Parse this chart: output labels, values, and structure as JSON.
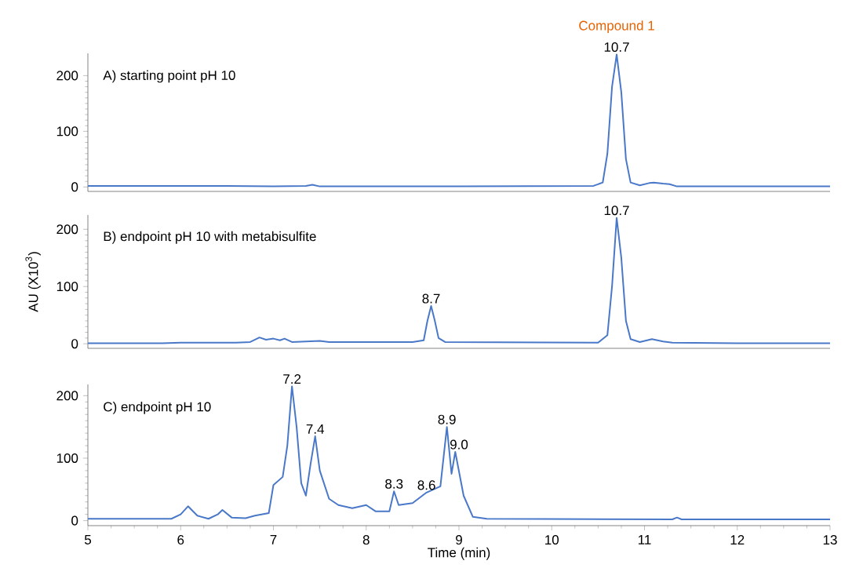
{
  "chart_data": [
    {
      "type": "line",
      "title": "A) starting point pH 10",
      "color": "#4a78c8",
      "xlim": [
        5,
        13
      ],
      "xticks": [
        5,
        6,
        7,
        8,
        9,
        10,
        11,
        12,
        13
      ],
      "ylim": [
        -8,
        240
      ],
      "yticks": [
        0,
        100,
        200
      ],
      "tick_labels": "y",
      "x": [
        5,
        6.5,
        7.0,
        7.35,
        7.42,
        7.5,
        9,
        10.45,
        10.55,
        10.6,
        10.65,
        10.7,
        10.75,
        10.8,
        10.85,
        10.95,
        11.05,
        11.1,
        11.2,
        11.27,
        11.35,
        12,
        13
      ],
      "values": [
        2,
        2,
        1,
        2,
        4,
        1,
        1,
        2,
        8,
        60,
        180,
        238,
        170,
        50,
        8,
        3,
        7,
        8,
        6,
        5,
        1,
        1,
        1
      ],
      "annotations": [
        {
          "text": "10.7",
          "x": 10.7,
          "y": 238
        },
        {
          "text": "Compound 1",
          "x": 10.7,
          "y": 238
        }
      ]
    },
    {
      "type": "line",
      "title": "B) endpoint pH 10 with metabisulfite",
      "ylabel": "AU (X10$^{3}$)",
      "color": "#4a78c8",
      "xlim": [
        5,
        13
      ],
      "xticks": [
        5,
        6,
        7,
        8,
        9,
        10,
        11,
        12,
        13
      ],
      "ylim": [
        -8,
        225
      ],
      "yticks": [
        0,
        100,
        200
      ],
      "tick_labels": "y",
      "x": [
        5,
        5.8,
        6.0,
        6.6,
        6.75,
        6.85,
        6.92,
        7.0,
        7.07,
        7.12,
        7.2,
        7.5,
        7.6,
        8.0,
        8.5,
        8.62,
        8.66,
        8.7,
        8.74,
        8.78,
        8.85,
        10.5,
        10.6,
        10.65,
        10.7,
        10.75,
        10.8,
        10.85,
        10.95,
        11.08,
        11.2,
        11.3,
        12,
        13
      ],
      "values": [
        1,
        1,
        2,
        2,
        3,
        11,
        7,
        9,
        6,
        9,
        3,
        5,
        3,
        3,
        3,
        6,
        40,
        66,
        40,
        10,
        3,
        2,
        15,
        100,
        220,
        150,
        40,
        8,
        3,
        8,
        4,
        2,
        1,
        1
      ],
      "annotations": [
        {
          "text": "8.7",
          "x": 8.7,
          "y": 66
        },
        {
          "text": "10.7",
          "x": 10.7,
          "y": 220
        }
      ]
    },
    {
      "type": "line",
      "title": "C) endpoint pH 10",
      "xlabel": "Time (min)",
      "color": "#4a78c8",
      "xlim": [
        5,
        13
      ],
      "xticks": [
        5,
        6,
        7,
        8,
        9,
        10,
        11,
        12,
        13
      ],
      "ylim": [
        -8,
        218
      ],
      "yticks": [
        0,
        100,
        200
      ],
      "x": [
        5,
        5.9,
        6.0,
        6.08,
        6.18,
        6.3,
        6.4,
        6.45,
        6.55,
        6.7,
        6.8,
        6.95,
        7.0,
        7.1,
        7.15,
        7.2,
        7.25,
        7.3,
        7.35,
        7.4,
        7.45,
        7.5,
        7.6,
        7.7,
        7.85,
        8.0,
        8.1,
        8.25,
        8.3,
        8.35,
        8.5,
        8.65,
        8.8,
        8.87,
        8.92,
        8.96,
        9.05,
        9.15,
        9.3,
        11.3,
        11.35,
        11.4,
        13
      ],
      "values": [
        3,
        3,
        10,
        23,
        8,
        3,
        10,
        17,
        5,
        4,
        8,
        12,
        57,
        70,
        120,
        215,
        150,
        60,
        40,
        90,
        135,
        80,
        35,
        25,
        20,
        25,
        15,
        15,
        47,
        25,
        28,
        45,
        55,
        150,
        75,
        110,
        40,
        6,
        3,
        2,
        5,
        2,
        2
      ],
      "annotations": [
        {
          "text": "7.2",
          "x": 7.2,
          "y": 215
        },
        {
          "text": "7.4",
          "x": 7.45,
          "y": 135
        },
        {
          "text": "8.3",
          "x": 8.3,
          "y": 47
        },
        {
          "text": "8.6",
          "x": 8.65,
          "y": 45
        },
        {
          "text": "8.9",
          "x": 8.87,
          "y": 150
        },
        {
          "text": "9.0",
          "x": 9.0,
          "y": 110
        }
      ]
    }
  ]
}
